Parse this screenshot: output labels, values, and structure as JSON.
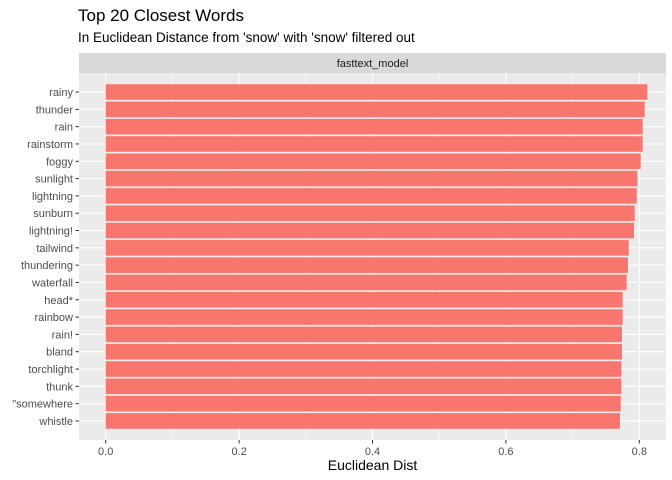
{
  "chart_data": {
    "type": "bar",
    "orientation": "horizontal",
    "title": "Top 20 Closest Words",
    "subtitle": "In Euclidean Distance from 'snow' with 'snow' filtered out",
    "facet_label": "fasttext_model",
    "xlabel": "Euclidean Dist",
    "ylabel": "",
    "xlim": [
      -0.04,
      0.84
    ],
    "xticks": [
      0.0,
      0.2,
      0.4,
      0.6,
      0.8
    ],
    "xtick_labels": [
      "0.0",
      "0.2",
      "0.4",
      "0.6",
      "0.8"
    ],
    "grid": true,
    "categories": [
      "rainy",
      "thunder",
      "rain",
      "rainstorm",
      "foggy",
      "sunlight",
      "lightning",
      "sunburn",
      "lightning!",
      "tailwind",
      "thundering",
      "waterfall",
      "head*",
      "rainbow",
      "rain!",
      "bland",
      "torchlight",
      "thunk",
      "\"somewhere",
      "whistle"
    ],
    "values": [
      0.812,
      0.808,
      0.805,
      0.805,
      0.802,
      0.797,
      0.796,
      0.793,
      0.792,
      0.784,
      0.783,
      0.781,
      0.775,
      0.775,
      0.774,
      0.774,
      0.773,
      0.773,
      0.772,
      0.771
    ],
    "bar_color": "#F8766D",
    "panel_color": "#EBEBEB",
    "strip_color": "#D9D9D9"
  }
}
